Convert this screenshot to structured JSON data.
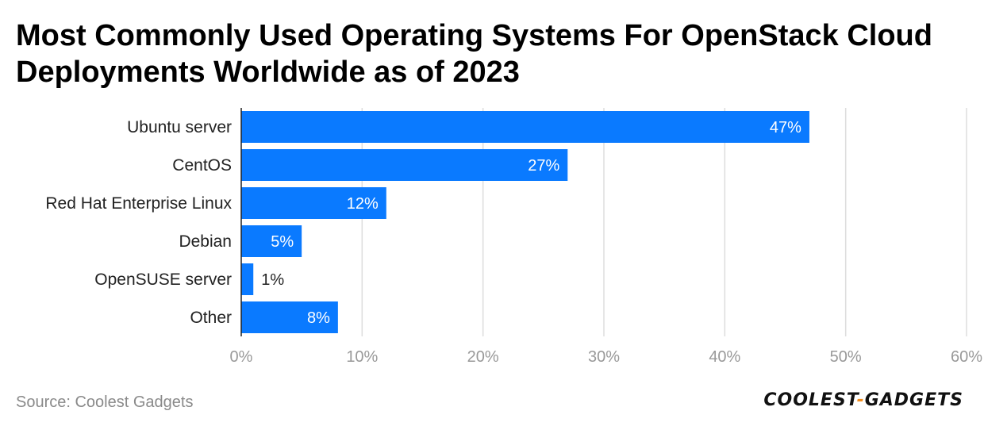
{
  "title": "Most Commonly Used Operating Systems For OpenStack Cloud Deployments Worldwide as of 2023",
  "source": "Source: Coolest Gadgets",
  "brand": {
    "left": "COOLEST",
    "separator": "-",
    "right": "GADGETS"
  },
  "colors": {
    "bar": "#0A7AFF",
    "grid": "#dddddd",
    "axis": "#222222",
    "tick_text": "#999999",
    "category_text": "#222222",
    "brand_accent": "#f28c1c"
  },
  "chart_data": {
    "type": "bar",
    "orientation": "horizontal",
    "title": "Most Commonly Used Operating Systems For OpenStack Cloud Deployments Worldwide as of 2023",
    "categories": [
      "Ubuntu server",
      "CentOS",
      "Red Hat Enterprise Linux",
      "Debian",
      "OpenSUSE server",
      "Other"
    ],
    "values": [
      47,
      27,
      12,
      5,
      1,
      8
    ],
    "value_labels": [
      "47%",
      "27%",
      "12%",
      "5%",
      "1%",
      "8%"
    ],
    "xlim": [
      0,
      60
    ],
    "xticks": [
      0,
      10,
      20,
      30,
      40,
      50,
      60
    ],
    "xtick_labels": [
      "0%",
      "10%",
      "20%",
      "30%",
      "40%",
      "50%",
      "60%"
    ],
    "xlabel": "",
    "ylabel": "",
    "grid": true,
    "legend": "none"
  }
}
